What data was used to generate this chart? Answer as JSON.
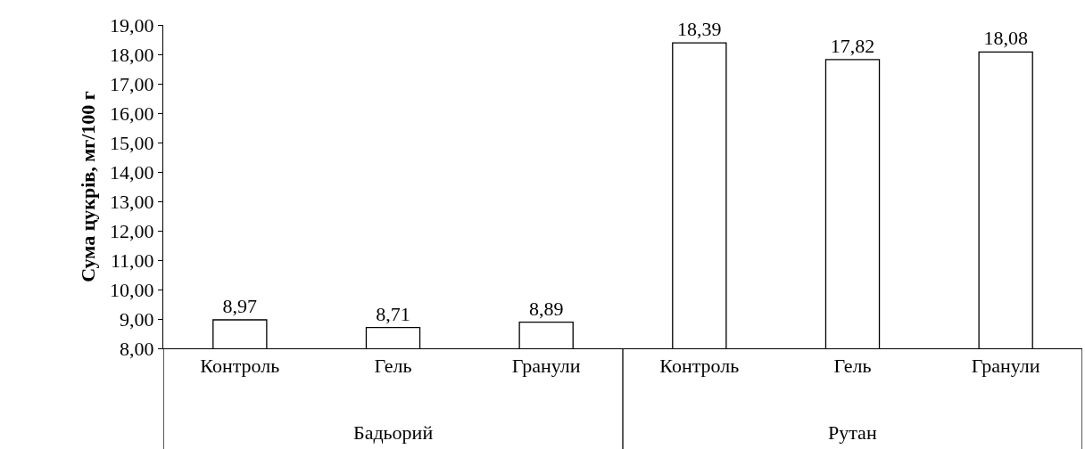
{
  "chart_data": {
    "type": "bar",
    "ylabel": "Сума цукрів, мг/100 г",
    "categories": [
      "Контроль",
      "Гель",
      "Гранули",
      "Контроль",
      "Гель",
      "Гранули"
    ],
    "values": [
      8.97,
      8.71,
      8.89,
      18.39,
      17.82,
      18.08
    ],
    "value_labels": [
      "8,97",
      "8,71",
      "8,89",
      "18,39",
      "17,82",
      "18,08"
    ],
    "color": "#ffffff",
    "ylim": [
      8,
      19
    ],
    "yticks": [
      {
        "value": 8,
        "label": "8,00"
      },
      {
        "value": 9,
        "label": "9,00"
      },
      {
        "value": 10,
        "label": "10,00"
      },
      {
        "value": 11,
        "label": "11,00"
      },
      {
        "value": 12,
        "label": "12,00"
      },
      {
        "value": 13,
        "label": "13,00"
      },
      {
        "value": 14,
        "label": "14,00"
      },
      {
        "value": 15,
        "label": "15,00"
      },
      {
        "value": 16,
        "label": "16,00"
      },
      {
        "value": 17,
        "label": "17,00"
      },
      {
        "value": 18,
        "label": "18,00"
      },
      {
        "value": 19,
        "label": "19,00"
      }
    ],
    "annotations": [
      "Бадьорий",
      "Рутан"
    ]
  }
}
